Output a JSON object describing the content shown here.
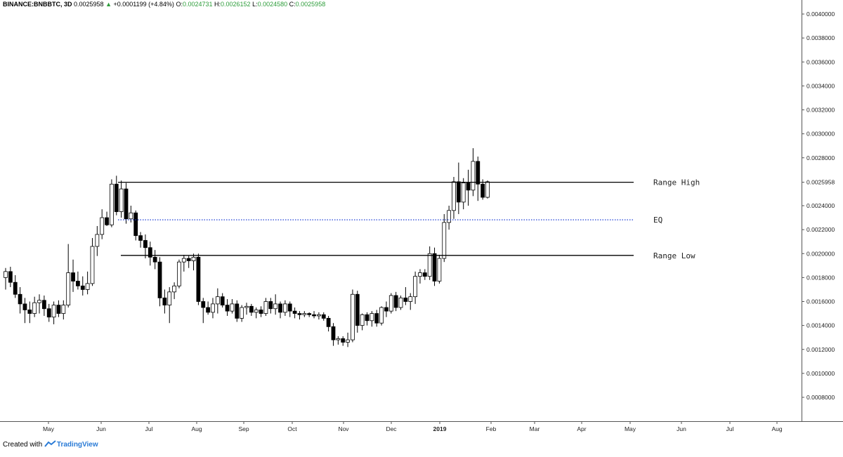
{
  "header": {
    "symbol": "BINANCE:BNBBTC, 3D",
    "last": "0.0025958",
    "arrow": "▲",
    "change": "+0.0001199 (+4.84%)",
    "o_label": "O:",
    "o_value": "0.0024731",
    "h_label": "H:",
    "h_value": "0.0026152",
    "l_label": "L:",
    "l_value": "0.0024580",
    "c_label": "C:",
    "c_value": "0.0025958"
  },
  "footer": {
    "prefix": "Created with",
    "brand": "TradingView"
  },
  "colors": {
    "up_fill": "#ffffff",
    "down_fill": "#000000",
    "eq_line": "#1f3fd6",
    "positive": "#2d9d3a"
  },
  "chart_data": {
    "type": "candlestick",
    "ylim": [
      0.0006,
      0.0041
    ],
    "y_ticks": [
      "0.0008000",
      "0.0010000",
      "0.0012000",
      "0.0014000",
      "0.0016000",
      "0.0018000",
      "0.0020000",
      "0.0022000",
      "0.0024000",
      "0.0028000",
      "0.0030000",
      "0.0032000",
      "0.0034000",
      "0.0036000",
      "0.0038000",
      "0.0040000"
    ],
    "last_price_label": "0.0025958",
    "x_ticks": [
      "May",
      "Jun",
      "Jul",
      "Aug",
      "Sep",
      "Oct",
      "Nov",
      "Dec",
      "2019",
      "Feb",
      "Mar",
      "Apr",
      "May",
      "Jun",
      "Jul",
      "Aug"
    ],
    "levels": [
      {
        "name": "Range High",
        "value": 0.0025958,
        "style": "solid",
        "from_candle": 55
      },
      {
        "name": "EQ",
        "value": 0.002282,
        "style": "dotted",
        "from_candle": 55
      },
      {
        "name": "Range Low",
        "value": 0.001985,
        "style": "solid",
        "from_candle": 55
      }
    ],
    "candles": [
      [
        0.0018,
        0.00188,
        0.0017,
        0.00185
      ],
      [
        0.00185,
        0.00189,
        0.00172,
        0.00176
      ],
      [
        0.00176,
        0.00182,
        0.00163,
        0.00166
      ],
      [
        0.00166,
        0.00172,
        0.0015,
        0.00158
      ],
      [
        0.00158,
        0.00163,
        0.00142,
        0.00153
      ],
      [
        0.00153,
        0.0016,
        0.00142,
        0.0015
      ],
      [
        0.0015,
        0.00164,
        0.00147,
        0.00159
      ],
      [
        0.00159,
        0.00166,
        0.0015,
        0.00161
      ],
      [
        0.00161,
        0.00165,
        0.00148,
        0.00154
      ],
      [
        0.00154,
        0.00158,
        0.00143,
        0.00147
      ],
      [
        0.00147,
        0.0016,
        0.00141,
        0.00157
      ],
      [
        0.00157,
        0.00161,
        0.00147,
        0.0015
      ],
      [
        0.0015,
        0.00161,
        0.00145,
        0.00157
      ],
      [
        0.00157,
        0.00208,
        0.00155,
        0.00184
      ],
      [
        0.00184,
        0.00195,
        0.00168,
        0.00177
      ],
      [
        0.00177,
        0.00185,
        0.0017,
        0.00173
      ],
      [
        0.00173,
        0.00181,
        0.00165,
        0.0017
      ],
      [
        0.0017,
        0.00185,
        0.00166,
        0.00175
      ],
      [
        0.00175,
        0.00213,
        0.00173,
        0.00206
      ],
      [
        0.00206,
        0.00223,
        0.00198,
        0.00216
      ],
      [
        0.00216,
        0.00237,
        0.00212,
        0.0023
      ],
      [
        0.0023,
        0.00235,
        0.00223,
        0.00224
      ],
      [
        0.00224,
        0.00262,
        0.00222,
        0.00258
      ],
      [
        0.00258,
        0.00265,
        0.00232,
        0.00235
      ],
      [
        0.00235,
        0.00261,
        0.0023,
        0.00254
      ],
      [
        0.00254,
        0.00259,
        0.00225,
        0.00229
      ],
      [
        0.00229,
        0.0024,
        0.00226,
        0.00234
      ],
      [
        0.00234,
        0.00236,
        0.00211,
        0.00215
      ],
      [
        0.00215,
        0.00218,
        0.00205,
        0.00211
      ],
      [
        0.00211,
        0.00216,
        0.00196,
        0.00205
      ],
      [
        0.00205,
        0.0021,
        0.0019,
        0.00197
      ],
      [
        0.00197,
        0.00203,
        0.00187,
        0.00193
      ],
      [
        0.00193,
        0.00197,
        0.00156,
        0.00163
      ],
      [
        0.00163,
        0.0017,
        0.0015,
        0.00157
      ],
      [
        0.00157,
        0.00172,
        0.00142,
        0.00168
      ],
      [
        0.00168,
        0.00176,
        0.00162,
        0.00173
      ],
      [
        0.00173,
        0.00195,
        0.00171,
        0.00193
      ],
      [
        0.00193,
        0.00199,
        0.00185,
        0.00196
      ],
      [
        0.00196,
        0.00198,
        0.00188,
        0.00194
      ],
      [
        0.00194,
        0.002,
        0.00186,
        0.00197
      ],
      [
        0.00197,
        0.002,
        0.00157,
        0.0016
      ],
      [
        0.0016,
        0.00163,
        0.00142,
        0.00155
      ],
      [
        0.00155,
        0.0016,
        0.00149,
        0.00151
      ],
      [
        0.00151,
        0.00163,
        0.00146,
        0.00158
      ],
      [
        0.00158,
        0.00171,
        0.0015,
        0.00164
      ],
      [
        0.00164,
        0.00167,
        0.00155,
        0.00157
      ],
      [
        0.00157,
        0.00162,
        0.00148,
        0.00152
      ],
      [
        0.00152,
        0.00162,
        0.0015,
        0.00158
      ],
      [
        0.00158,
        0.00161,
        0.00143,
        0.00146
      ],
      [
        0.00146,
        0.00157,
        0.00143,
        0.00155
      ],
      [
        0.00155,
        0.00159,
        0.00149,
        0.00156
      ],
      [
        0.00156,
        0.00158,
        0.00148,
        0.00151
      ],
      [
        0.00151,
        0.00155,
        0.00146,
        0.00153
      ],
      [
        0.00153,
        0.00156,
        0.00147,
        0.0015
      ],
      [
        0.0015,
        0.00163,
        0.00148,
        0.0016
      ],
      [
        0.0016,
        0.00163,
        0.0015,
        0.00154
      ],
      [
        0.00154,
        0.00166,
        0.00149,
        0.00158
      ],
      [
        0.00158,
        0.0016,
        0.00146,
        0.00151
      ],
      [
        0.00151,
        0.00161,
        0.00148,
        0.00158
      ],
      [
        0.00158,
        0.0016,
        0.00147,
        0.00152
      ],
      [
        0.00152,
        0.00155,
        0.00146,
        0.0015
      ],
      [
        0.0015,
        0.00152,
        0.00145,
        0.00149
      ],
      [
        0.00149,
        0.00152,
        0.00147,
        0.0015
      ],
      [
        0.0015,
        0.00151,
        0.00147,
        0.00149
      ],
      [
        0.00149,
        0.00152,
        0.00146,
        0.00148
      ],
      [
        0.00148,
        0.00151,
        0.00145,
        0.00149
      ],
      [
        0.00149,
        0.00151,
        0.00144,
        0.00146
      ],
      [
        0.00146,
        0.00148,
        0.00135,
        0.00139
      ],
      [
        0.00139,
        0.00142,
        0.00123,
        0.00128
      ],
      [
        0.00128,
        0.00131,
        0.00124,
        0.00129
      ],
      [
        0.00129,
        0.00131,
        0.00123,
        0.00126
      ],
      [
        0.00126,
        0.00134,
        0.00122,
        0.00128
      ],
      [
        0.00128,
        0.0017,
        0.00126,
        0.00166
      ],
      [
        0.00166,
        0.00169,
        0.00134,
        0.0014
      ],
      [
        0.0014,
        0.0015,
        0.00136,
        0.00149
      ],
      [
        0.00149,
        0.00151,
        0.0014,
        0.00144
      ],
      [
        0.00144,
        0.00152,
        0.00139,
        0.0015
      ],
      [
        0.0015,
        0.00153,
        0.00139,
        0.00142
      ],
      [
        0.00142,
        0.00156,
        0.0014,
        0.00155
      ],
      [
        0.00155,
        0.0016,
        0.00147,
        0.00152
      ],
      [
        0.00152,
        0.00167,
        0.0015,
        0.00165
      ],
      [
        0.00165,
        0.00168,
        0.00152,
        0.00155
      ],
      [
        0.00155,
        0.00165,
        0.00153,
        0.00163
      ],
      [
        0.00163,
        0.00172,
        0.00157,
        0.0016
      ],
      [
        0.0016,
        0.00167,
        0.00153,
        0.00164
      ],
      [
        0.00164,
        0.00185,
        0.00158,
        0.00181
      ],
      [
        0.00181,
        0.00187,
        0.00175,
        0.00184
      ],
      [
        0.00184,
        0.00187,
        0.00178,
        0.00181
      ],
      [
        0.00181,
        0.00206,
        0.00178,
        0.002
      ],
      [
        0.002,
        0.00205,
        0.00173,
        0.00177
      ],
      [
        0.00177,
        0.00199,
        0.00175,
        0.00196
      ],
      [
        0.00196,
        0.00233,
        0.00193,
        0.00226
      ],
      [
        0.00226,
        0.0024,
        0.0022,
        0.00236
      ],
      [
        0.00236,
        0.00264,
        0.00229,
        0.0026
      ],
      [
        0.0026,
        0.00276,
        0.00233,
        0.00243
      ],
      [
        0.00243,
        0.00263,
        0.00237,
        0.00259
      ],
      [
        0.00259,
        0.0027,
        0.0024,
        0.00253
      ],
      [
        0.00253,
        0.00288,
        0.00248,
        0.00277
      ],
      [
        0.00277,
        0.00281,
        0.00244,
        0.00258
      ],
      [
        0.00258,
        0.00262,
        0.00245,
        0.00247
      ],
      [
        0.00247,
        0.00261,
        0.00246,
        0.0026
      ]
    ]
  }
}
